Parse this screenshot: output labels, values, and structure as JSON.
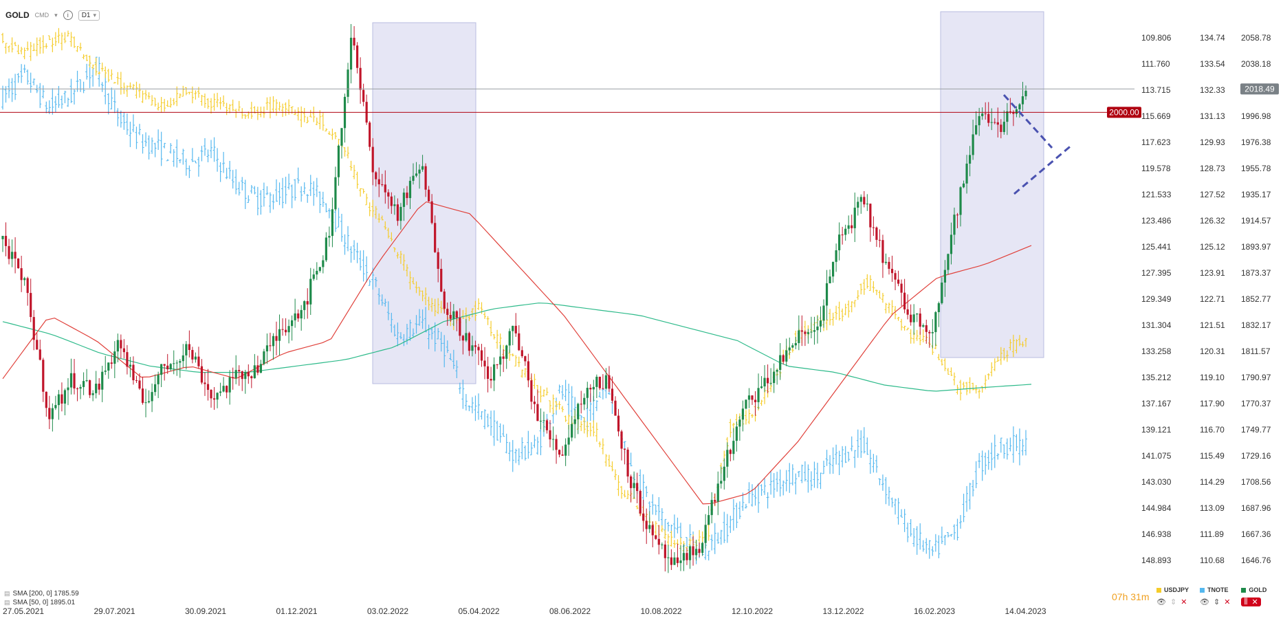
{
  "toolbar": {
    "symbol": "GOLD",
    "source": "CMD",
    "info_icon": "info-icon",
    "timeframe": "D1"
  },
  "colors": {
    "gold_up": "#1e8a4a",
    "gold_down": "#c0152a",
    "usdjpy": "#f5cc2a",
    "tnote": "#55b8ef",
    "sma200": "#2dba8a",
    "sma50": "#e0403a",
    "highlight": "#e6e6f5",
    "line2000": "#b00010",
    "current_line": "#9aa0a4",
    "trend": "#4a52b0"
  },
  "axes": {
    "usdjpy_labels": [
      "109.806",
      "111.760",
      "113.715",
      "115.669",
      "117.623",
      "119.578",
      "121.533",
      "123.486",
      "125.441",
      "127.395",
      "129.349",
      "131.304",
      "133.258",
      "135.212",
      "137.167",
      "139.121",
      "141.075",
      "143.030",
      "144.984",
      "146.938",
      "148.893"
    ],
    "tnote_labels": [
      "134.74",
      "133.54",
      "132.33",
      "131.13",
      "129.93",
      "128.73",
      "127.52",
      "126.32",
      "125.12",
      "123.91",
      "122.71",
      "121.51",
      "120.31",
      "119.10",
      "117.90",
      "116.70",
      "115.49",
      "114.29",
      "113.09",
      "111.89",
      "110.68"
    ],
    "gold_labels": [
      "2058.78",
      "2038.18",
      "2018.49",
      "1996.98",
      "1976.38",
      "1955.78",
      "1935.17",
      "1914.57",
      "1893.97",
      "1873.37",
      "1852.77",
      "1832.17",
      "1811.57",
      "1790.97",
      "1770.37",
      "1749.77",
      "1729.16",
      "1708.56",
      "1687.96",
      "1667.36",
      "1646.76"
    ],
    "dates": [
      "27.05.2021",
      "29.07.2021",
      "30.09.2021",
      "01.12.2021",
      "03.02.2022",
      "05.04.2022",
      "08.06.2022",
      "10.08.2022",
      "12.10.2022",
      "13.12.2022",
      "16.02.2023",
      "14.04.2023"
    ]
  },
  "price_tags": {
    "current": "2018.49",
    "level": "2000.00"
  },
  "chart_data": {
    "type": "line",
    "ylim_gold": [
      1646.76,
      2058.78
    ],
    "series": [
      {
        "name": "GOLD",
        "values": [
          1900,
          1860,
          1760,
          1790,
          1780,
          1820,
          1770,
          1800,
          1815,
          1775,
          1790,
          1800,
          1830,
          1850,
          1900,
          2060,
          1950,
          1920,
          1960,
          1850,
          1820,
          1790,
          1830,
          1760,
          1730,
          1780,
          1790,
          1710,
          1660,
          1640,
          1660,
          1720,
          1770,
          1790,
          1820,
          1830,
          1900,
          1930,
          1880,
          1840,
          1830,
          1920,
          2000,
          1990,
          2018.49
        ]
      },
      {
        "name": "USDJPY",
        "values": [
          110,
          111,
          110,
          109.9,
          112,
          113,
          114,
          115,
          113.7,
          114.5,
          115,
          115.4,
          114.8,
          115.6,
          115.9,
          118,
          122,
          124.5,
          128,
          130,
          131,
          130,
          133,
          135,
          136.8,
          138.5,
          139,
          143,
          145,
          147,
          148,
          147,
          139,
          138,
          135,
          132,
          131,
          130.3,
          128,
          130,
          132,
          133,
          136,
          136,
          133.4,
          132.3
        ]
      },
      {
        "name": "TNOTE",
        "values": [
          132,
          133,
          131.5,
          132.1,
          133.5,
          131,
          130,
          129.5,
          129,
          129.5,
          128,
          127.3,
          127.5,
          128,
          127,
          125,
          123.4,
          121,
          121.6,
          120.5,
          118,
          117,
          115.5,
          116,
          118.5,
          117,
          119,
          115,
          113,
          112,
          111,
          112,
          113.5,
          114,
          114.7,
          114.5,
          115.5,
          116,
          114,
          112,
          111,
          112,
          115,
          116,
          116
        ]
      },
      {
        "name": "SMA [200, 0]",
        "values": [
          1835,
          1825,
          1810,
          1800,
          1795,
          1795,
          1800,
          1805,
          1815,
          1835,
          1845,
          1850,
          1845,
          1840,
          1830,
          1820,
          1800,
          1795,
          1785,
          1780,
          1783,
          1785.59
        ]
      },
      {
        "name": "SMA [50, 0]",
        "values": [
          1790,
          1840,
          1820,
          1790,
          1800,
          1790,
          1810,
          1820,
          1880,
          1930,
          1920,
          1880,
          1840,
          1790,
          1740,
          1690,
          1700,
          1740,
          1790,
          1840,
          1870,
          1880,
          1895.01
        ]
      }
    ]
  },
  "legend": {
    "sma200": "SMA [200, 0] 1785.59",
    "sma50": "SMA [50, 0] 1895.01"
  },
  "countdown": {
    "hours": "07",
    "h": "h",
    "minutes": "31",
    "m": "m"
  },
  "series_toggles": [
    {
      "label": "USDJPY",
      "color": "#f5cc2a"
    },
    {
      "label": "TNOTE",
      "color": "#55b8ef"
    },
    {
      "label": "GOLD",
      "color": "#1e8a4a"
    }
  ]
}
